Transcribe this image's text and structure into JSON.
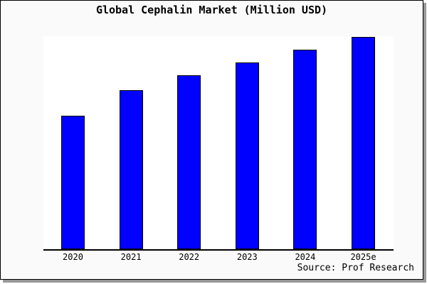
{
  "chart": {
    "title": "Global Cephalin Market (Million USD)",
    "source": "Source: Prof Research"
  },
  "chart_data": {
    "type": "bar",
    "title": "Global Cephalin Market (Million USD)",
    "categories": [
      "2020",
      "2021",
      "2022",
      "2023",
      "2024",
      "2025e"
    ],
    "values": [
      63,
      75,
      82,
      88,
      94,
      100
    ],
    "value_note": "y-axis has no ticks or labels; values estimated as percent of tallest bar (2025e = 100)",
    "xlabel": "",
    "ylabel": "",
    "ylim": [
      0,
      100
    ],
    "grid": false,
    "legend": false,
    "annotations": [
      "Source: Prof Research"
    ],
    "bar_color": "#0000ff",
    "bar_border_color": "#000000"
  },
  "colors": {
    "page_background": "#fafafa",
    "plot_background": "#ffffff",
    "frame_border": "#000000",
    "frame_shadow": "#999999",
    "text": "#000000"
  }
}
